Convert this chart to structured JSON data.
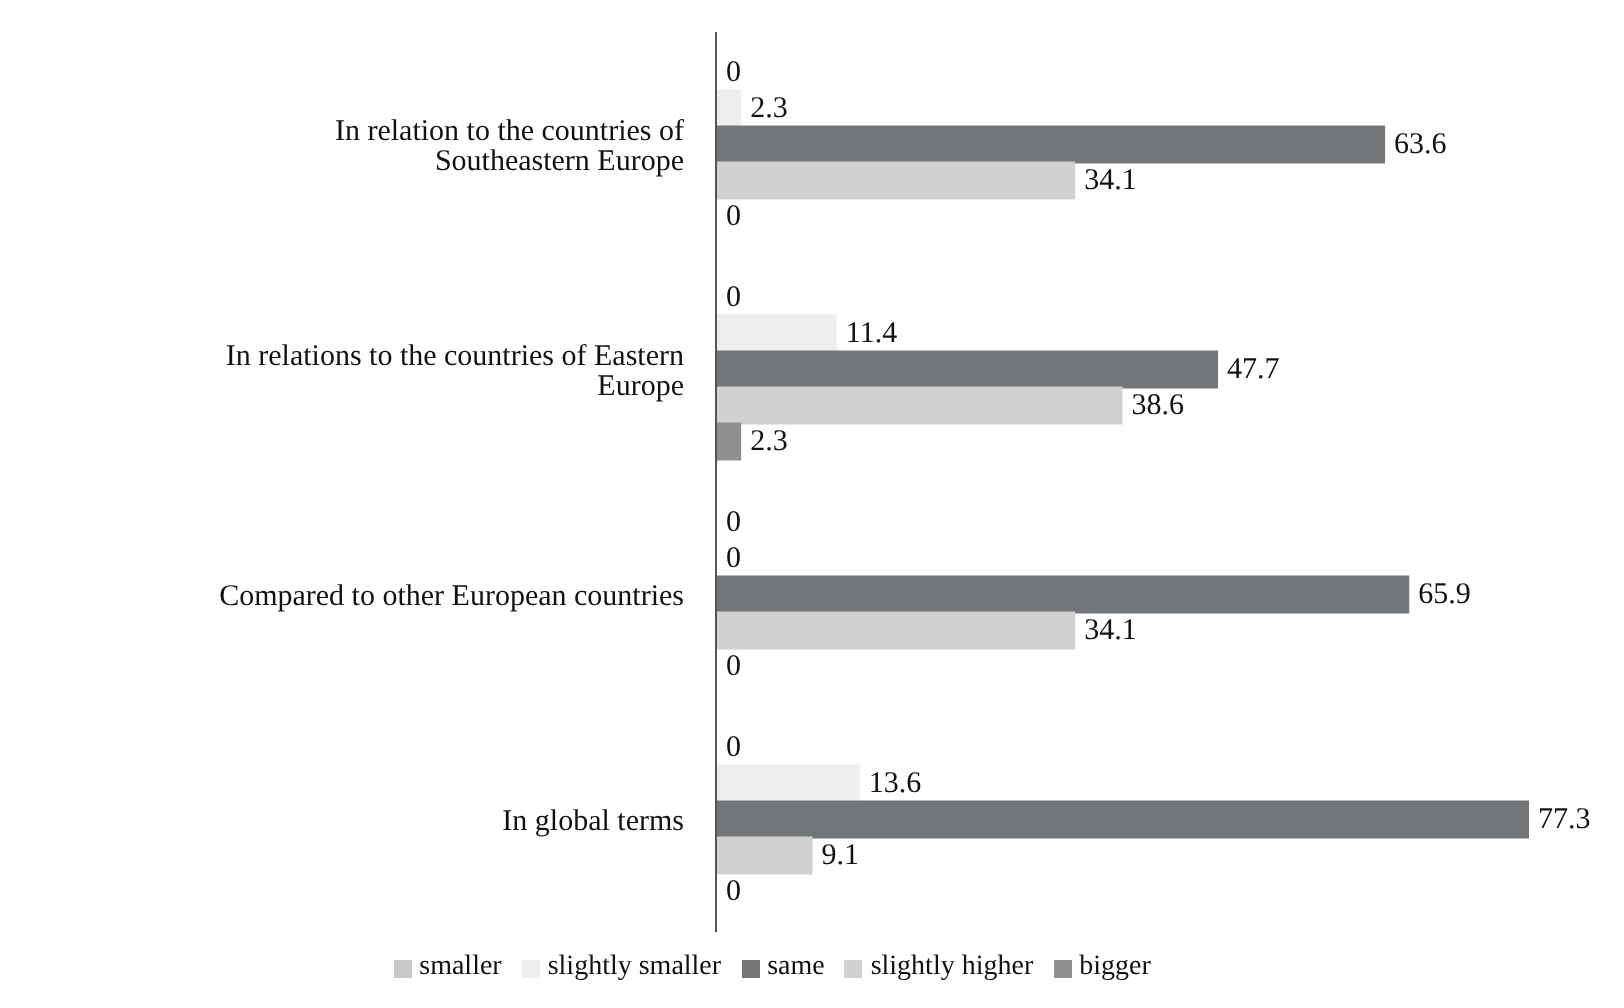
{
  "chart_data": {
    "type": "bar",
    "orientation": "horizontal",
    "data_labels": true,
    "legend": "bottom",
    "grid": false,
    "categories": [
      "In relation to the countries of Southeastern Europe",
      "In relations to the countries of Eastern Europe",
      "Compared to other European countries",
      "In global terms"
    ],
    "series": [
      {
        "name": "smaller",
        "color": "#c8c8c8",
        "values": [
          0,
          0,
          0,
          0
        ]
      },
      {
        "name": "slightly smaller",
        "color": "#eeeeee",
        "values": [
          2.3,
          11.4,
          0,
          13.6
        ]
      },
      {
        "name": "same",
        "color": "#73777a",
        "values": [
          63.6,
          47.7,
          65.9,
          77.3
        ]
      },
      {
        "name": "slightly higher",
        "color": "#d0d1d0",
        "values": [
          34.1,
          38.6,
          34.1,
          9.1
        ]
      },
      {
        "name": "bigger",
        "color": "#8e9092",
        "values": [
          0,
          2.3,
          0,
          0
        ]
      }
    ]
  }
}
